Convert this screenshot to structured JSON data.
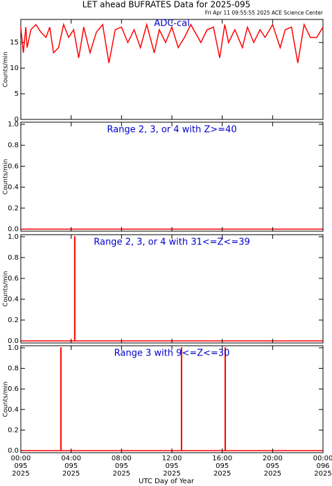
{
  "chart_data": [
    {
      "type": "line",
      "title": "LET ahead BUFRATES Data for 2025-095",
      "subtitle": "Fri Apr 11 09:55:55 2025 ACE Science Center",
      "annotation": "ADC-cal",
      "ylabel": "Counts/min",
      "xlim": [
        0,
        24
      ],
      "ylim": [
        0,
        19.5
      ],
      "yticks": [
        0,
        5,
        10,
        15
      ],
      "series": [
        {
          "color": "#ff0000",
          "x": [
            0,
            0.2,
            0.4,
            0.5,
            0.8,
            1.2,
            1.6,
            2.0,
            2.3,
            2.6,
            3.0,
            3.4,
            3.8,
            4.2,
            4.6,
            5.0,
            5.5,
            6.0,
            6.5,
            7.0,
            7.5,
            8.0,
            8.5,
            9.0,
            9.5,
            10.0,
            10.6,
            11.0,
            11.5,
            12.0,
            12.5,
            13.0,
            13.5,
            14.3,
            14.8,
            15.3,
            15.8,
            16.2,
            16.5,
            17.0,
            17.6,
            18.0,
            18.5,
            19.0,
            19.4,
            20.0,
            20.6,
            21.0,
            21.5,
            22.0,
            22.5,
            23.0,
            23.5,
            24.0
          ],
          "values": [
            18,
            13,
            18,
            14,
            17.5,
            18.5,
            17,
            16,
            18,
            13,
            14,
            18.5,
            16,
            17.5,
            12,
            18,
            13,
            17,
            18.5,
            11,
            17.5,
            18,
            15,
            17.5,
            14,
            18.5,
            13,
            17.5,
            15,
            18,
            14,
            16,
            18.5,
            15,
            17.5,
            18,
            12,
            18.5,
            15,
            17.5,
            14,
            18,
            15,
            17.5,
            16,
            18.5,
            14,
            17.5,
            18,
            11,
            18.5,
            16,
            16,
            18
          ]
        }
      ]
    },
    {
      "type": "line",
      "annotation": "Range 2, 3, or 4 with Z>=40",
      "ylabel": "Counts/min",
      "xlim": [
        0,
        24
      ],
      "ylim": [
        -0.02,
        1.02
      ],
      "yticks": [
        {
          "value": 0,
          "label": "0.0"
        },
        {
          "value": 0.2,
          "label": "0.2"
        },
        {
          "value": 0.4,
          "label": "0.4"
        },
        {
          "value": 0.6,
          "label": "0.6"
        },
        {
          "value": 0.8,
          "label": "0.8"
        },
        {
          "value": 1,
          "label": "1.0"
        }
      ],
      "series": [
        {
          "color": "#ff0000",
          "x": [
            0,
            24
          ],
          "values": [
            0,
            0
          ]
        }
      ]
    },
    {
      "type": "line",
      "annotation": "Range 2, 3, or 4 with 31<=Z<=39",
      "ylabel": "Counts/min",
      "xlim": [
        0,
        24
      ],
      "ylim": [
        -0.02,
        1.02
      ],
      "yticks": [
        {
          "value": 0,
          "label": "0.0"
        },
        {
          "value": 0.2,
          "label": "0.2"
        },
        {
          "value": 0.4,
          "label": "0.4"
        },
        {
          "value": 0.6,
          "label": "0.6"
        },
        {
          "value": 0.8,
          "label": "0.8"
        },
        {
          "value": 1,
          "label": "1.0"
        }
      ],
      "series": [
        {
          "color": "#ff0000",
          "x": [
            0,
            4.27,
            4.27,
            4.3,
            4.3,
            24
          ],
          "values": [
            0,
            0,
            1,
            1,
            0,
            0
          ]
        }
      ]
    },
    {
      "type": "line",
      "annotation": "Range 3 with 9<=Z<=30",
      "ylabel": "Counts/min",
      "xlabel": "UTC Day of Year",
      "xlim": [
        0,
        24
      ],
      "ylim": [
        -0.02,
        1.02
      ],
      "yticks": [
        {
          "value": 0,
          "label": "0.0"
        },
        {
          "value": 0.2,
          "label": "0.2"
        },
        {
          "value": 0.4,
          "label": "0.4"
        },
        {
          "value": 0.6,
          "label": "0.6"
        },
        {
          "value": 0.8,
          "label": "0.8"
        },
        {
          "value": 1,
          "label": "1.0"
        }
      ],
      "xticks": [
        {
          "value": 0,
          "label": [
            "00:00",
            "095",
            "2025"
          ]
        },
        {
          "value": 4,
          "label": [
            "04:00",
            "095",
            "2025"
          ]
        },
        {
          "value": 8,
          "label": [
            "08:00",
            "095",
            "2025"
          ]
        },
        {
          "value": 12,
          "label": [
            "12:00",
            "095",
            "2025"
          ]
        },
        {
          "value": 16,
          "label": [
            "16:00",
            "095",
            "2025"
          ]
        },
        {
          "value": 20,
          "label": [
            "20:00",
            "095",
            "2025"
          ]
        },
        {
          "value": 24,
          "label": [
            "00:00",
            "096",
            "2025"
          ]
        }
      ],
      "series": [
        {
          "color": "#ff0000",
          "x": [
            0,
            3.17,
            3.17,
            3.2,
            3.2,
            12.75,
            12.75,
            12.78,
            12.78,
            16.22,
            16.22,
            16.25,
            16.25,
            24
          ],
          "values": [
            0,
            0,
            1,
            1,
            0,
            0,
            1,
            1,
            0,
            0,
            1,
            1,
            0,
            0
          ]
        }
      ]
    }
  ]
}
